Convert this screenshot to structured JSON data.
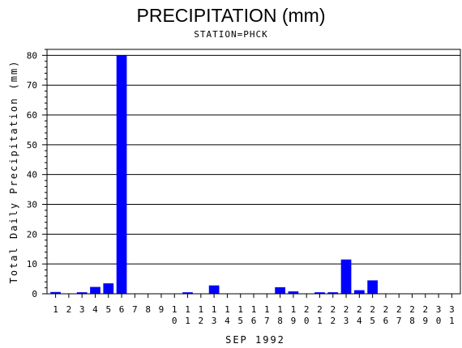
{
  "chart_data": {
    "type": "bar",
    "title": "PRECIPITATION (mm)",
    "subtitle": "STATION=PHCK",
    "ylabel": "Total Daily Precipitation (mm)",
    "xlabel": "SEP 1992",
    "ylim": [
      0,
      82
    ],
    "yticks": [
      0,
      10,
      20,
      30,
      40,
      50,
      60,
      70,
      80
    ],
    "grid": true,
    "bar_color": "#0000ff",
    "categories": [
      "1",
      "2",
      "3",
      "4",
      "5",
      "6",
      "7",
      "8",
      "9",
      "10",
      "11",
      "12",
      "13",
      "14",
      "15",
      "16",
      "17",
      "18",
      "19",
      "20",
      "21",
      "22",
      "23",
      "24",
      "25",
      "26",
      "27",
      "28",
      "29",
      "30",
      "31"
    ],
    "values": [
      0.6,
      0,
      0.5,
      2.3,
      3.5,
      80,
      0,
      0,
      0,
      0,
      0.5,
      0,
      2.8,
      0,
      0,
      0,
      0,
      2.2,
      0.8,
      0,
      0.5,
      0.5,
      11.5,
      1.2,
      4.5,
      0,
      0,
      0,
      0,
      0,
      0
    ]
  }
}
